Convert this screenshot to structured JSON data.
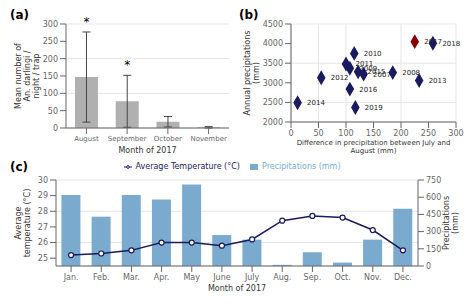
{
  "chart_data": [
    {
      "type": "bar",
      "title": "(a)",
      "xlabel": "Month of 2017",
      "ylabel": "Mean number of An. darlingi / night / trap",
      "categories": [
        "August",
        "September",
        "October",
        "November"
      ],
      "values": [
        147,
        77,
        18,
        2
      ],
      "errors": [
        130,
        75,
        15,
        2
      ],
      "color": "#b0b0b0",
      "ylim": [
        0,
        300
      ],
      "yticks": [
        0,
        50,
        100,
        150,
        200,
        250,
        300
      ],
      "grid": true,
      "annotations": [
        {
          "category": "August",
          "text": "*"
        },
        {
          "category": "September",
          "text": "*"
        }
      ]
    },
    {
      "type": "scatter",
      "title": "(b)",
      "xlabel": "Difference in precipitation between July and\nAugust (mm)",
      "ylabel": "Annual precipitations (mm)",
      "x": [
        225,
        258,
        115,
        100,
        107,
        122,
        132,
        185,
        233,
        55,
        107,
        12,
        117
      ],
      "values": [
        4050,
        4010,
        3750,
        3480,
        3370,
        3280,
        3220,
        3260,
        3060,
        3130,
        2840,
        2490,
        2370
      ],
      "labels": [
        "2017",
        "2018",
        "2010",
        "2011",
        "2009",
        "2015",
        "2007",
        "2008",
        "2013",
        "2012",
        "2016",
        "2014",
        "2019"
      ],
      "colors": [
        "#8B0000",
        "#1a1a5e",
        "#1a1a5e",
        "#1a1a5e",
        "#1a1a5e",
        "#1a1a5e",
        "#1a1a5e",
        "#1a1a5e",
        "#1a1a5e",
        "#1a1a5e",
        "#1a1a5e",
        "#1a1a5e",
        "#1a1a5e"
      ],
      "marker": "diamond",
      "xlim": [
        0,
        300
      ],
      "xticks": [
        0,
        50,
        100,
        150,
        200,
        250,
        300
      ],
      "ylim": [
        2000,
        4500
      ],
      "yticks": [
        2000,
        2500,
        3000,
        3500,
        4000,
        4500
      ],
      "grid": true
    },
    {
      "type": "combo",
      "title": "(c)",
      "xlabel": "Month of 2017",
      "ylabel": "Average temperature (°C)",
      "y2label": "Precipitations (mm)",
      "categories": [
        "Jan.",
        "Feb.",
        "Mar.",
        "Apr.",
        "May",
        "June",
        "July",
        "Aug.",
        "Sep.",
        "Oct.",
        "Nov.",
        "Dec."
      ],
      "series": [
        {
          "name": "Precipitations (mm)",
          "type": "bar",
          "axis": "y2",
          "color": "#7aabcf",
          "values": [
            620,
            430,
            620,
            580,
            710,
            270,
            230,
            10,
            120,
            30,
            230,
            500
          ]
        },
        {
          "name": "Average Temperature (°C)",
          "type": "line",
          "color": "#1a1a5e",
          "marker": "circle",
          "values": [
            25.2,
            25.3,
            25.5,
            26.0,
            26.0,
            25.8,
            26.2,
            27.4,
            27.7,
            27.6,
            26.8,
            25.5
          ]
        }
      ],
      "ylim": [
        24.5,
        30
      ],
      "yticks": [
        25,
        26,
        27,
        28,
        29,
        30
      ],
      "y2lim": [
        0,
        750
      ],
      "y2ticks": [
        0,
        150,
        300,
        450,
        600,
        750
      ],
      "grid": true,
      "legend": "top"
    }
  ]
}
